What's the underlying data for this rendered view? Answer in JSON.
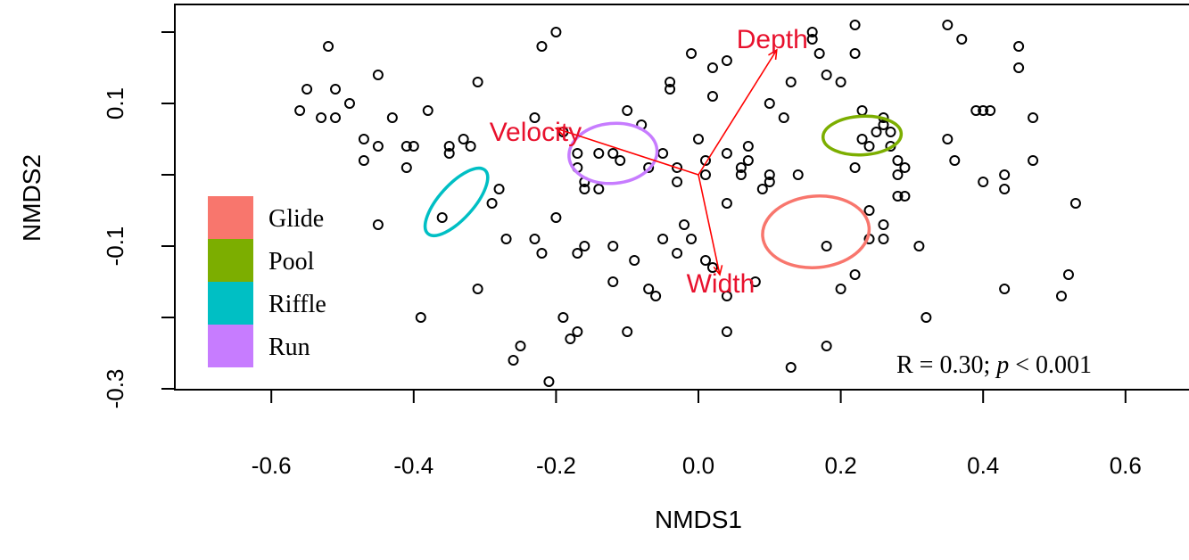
{
  "chart_data": {
    "type": "scatter",
    "xlabel": "NMDS1",
    "ylabel": "NMDS2",
    "xlim": [
      -0.7,
      0.7
    ],
    "ylim": [
      -0.32,
      0.2
    ],
    "x_ticks": [
      -0.6,
      -0.4,
      -0.2,
      0.0,
      0.2,
      0.4,
      0.6
    ],
    "x_tick_labels": [
      "-0.6",
      "-0.4",
      "-0.2",
      "0.0",
      "0.2",
      "0.4",
      "0.6"
    ],
    "y_ticks": [
      -0.3,
      -0.2,
      -0.1,
      0.0,
      0.1,
      0.2
    ],
    "y_tick_labels": [
      {
        "value": -0.3,
        "label": "-0.3"
      },
      {
        "value": -0.1,
        "label": "-0.1"
      },
      {
        "value": 0.1,
        "label": "0.1"
      }
    ],
    "grid": false,
    "point_color": "#000000",
    "points": [
      [
        -0.56,
        0.09
      ],
      [
        -0.55,
        0.12
      ],
      [
        -0.52,
        0.18
      ],
      [
        -0.51,
        0.12
      ],
      [
        -0.53,
        0.08
      ],
      [
        -0.51,
        0.08
      ],
      [
        -0.49,
        0.1
      ],
      [
        -0.45,
        0.14
      ],
      [
        -0.47,
        0.05
      ],
      [
        -0.47,
        0.02
      ],
      [
        -0.45,
        0.04
      ],
      [
        -0.43,
        0.08
      ],
      [
        -0.41,
        0.04
      ],
      [
        -0.4,
        0.04
      ],
      [
        -0.41,
        0.01
      ],
      [
        -0.38,
        0.09
      ],
      [
        -0.35,
        0.04
      ],
      [
        -0.35,
        0.03
      ],
      [
        -0.33,
        0.05
      ],
      [
        -0.32,
        0.04
      ],
      [
        -0.31,
        0.13
      ],
      [
        -0.29,
        -0.04
      ],
      [
        -0.28,
        -0.02
      ],
      [
        -0.45,
        -0.07
      ],
      [
        -0.36,
        -0.06
      ],
      [
        -0.39,
        -0.2
      ],
      [
        -0.31,
        -0.16
      ],
      [
        -0.23,
        0.08
      ],
      [
        -0.22,
        0.18
      ],
      [
        -0.2,
        0.2
      ],
      [
        -0.2,
        -0.06
      ],
      [
        -0.19,
        0.06
      ],
      [
        -0.17,
        0.03
      ],
      [
        -0.17,
        0.01
      ],
      [
        -0.16,
        -0.01
      ],
      [
        -0.16,
        -0.02
      ],
      [
        -0.14,
        0.03
      ],
      [
        -0.14,
        -0.02
      ],
      [
        -0.12,
        0.03
      ],
      [
        -0.11,
        0.02
      ],
      [
        -0.1,
        0.09
      ],
      [
        -0.08,
        0.07
      ],
      [
        -0.07,
        0.01
      ],
      [
        -0.05,
        0.03
      ],
      [
        -0.04,
        0.13
      ],
      [
        -0.04,
        0.12
      ],
      [
        -0.03,
        0.01
      ],
      [
        -0.01,
        0.17
      ],
      [
        -0.0,
        0.05
      ],
      [
        0.01,
        0.02
      ],
      [
        0.01,
        0.0
      ],
      [
        0.02,
        0.15
      ],
      [
        0.02,
        0.11
      ],
      [
        0.04,
        0.16
      ],
      [
        0.04,
        0.03
      ],
      [
        0.06,
        0.01
      ],
      [
        0.06,
        -0.0
      ],
      [
        0.07,
        0.04
      ],
      [
        0.07,
        0.02
      ],
      [
        0.09,
        -0.02
      ],
      [
        0.1,
        0.1
      ],
      [
        0.1,
        -0.01
      ],
      [
        0.1,
        -0.0
      ],
      [
        0.12,
        0.08
      ],
      [
        0.13,
        0.13
      ],
      [
        0.14,
        -0.0
      ],
      [
        0.16,
        0.19
      ],
      [
        0.16,
        0.2
      ],
      [
        0.17,
        0.17
      ],
      [
        0.18,
        0.14
      ],
      [
        0.2,
        0.13
      ],
      [
        0.22,
        0.17
      ],
      [
        0.22,
        0.21
      ],
      [
        0.22,
        0.01
      ],
      [
        0.23,
        0.09
      ],
      [
        0.23,
        0.05
      ],
      [
        0.24,
        0.04
      ],
      [
        0.24,
        -0.05
      ],
      [
        0.24,
        -0.09
      ],
      [
        0.25,
        0.06
      ],
      [
        0.26,
        0.08
      ],
      [
        0.26,
        0.07
      ],
      [
        0.27,
        0.06
      ],
      [
        0.27,
        0.04
      ],
      [
        0.28,
        0.02
      ],
      [
        0.28,
        0.0
      ],
      [
        0.28,
        -0.03
      ],
      [
        0.29,
        -0.03
      ],
      [
        0.29,
        0.01
      ],
      [
        0.26,
        -0.07
      ],
      [
        0.26,
        -0.09
      ],
      [
        0.22,
        -0.14
      ],
      [
        0.2,
        -0.16
      ],
      [
        0.18,
        -0.1
      ],
      [
        0.18,
        -0.24
      ],
      [
        0.13,
        -0.27
      ],
      [
        0.31,
        -0.1
      ],
      [
        0.32,
        -0.2
      ],
      [
        0.35,
        0.21
      ],
      [
        0.35,
        0.05
      ],
      [
        0.36,
        0.02
      ],
      [
        0.37,
        0.19
      ],
      [
        0.39,
        0.09
      ],
      [
        0.4,
        0.09
      ],
      [
        0.4,
        -0.01
      ],
      [
        0.41,
        0.09
      ],
      [
        0.43,
        0.0
      ],
      [
        0.43,
        -0.02
      ],
      [
        0.43,
        -0.16
      ],
      [
        0.45,
        0.15
      ],
      [
        0.45,
        0.18
      ],
      [
        0.47,
        0.08
      ],
      [
        0.47,
        0.02
      ],
      [
        0.51,
        -0.17
      ],
      [
        0.52,
        -0.14
      ],
      [
        0.53,
        -0.04
      ],
      [
        -0.27,
        -0.09
      ],
      [
        -0.23,
        -0.09
      ],
      [
        -0.22,
        -0.11
      ],
      [
        -0.17,
        -0.11
      ],
      [
        -0.16,
        -0.1
      ],
      [
        -0.12,
        -0.1
      ],
      [
        -0.12,
        -0.15
      ],
      [
        -0.09,
        -0.12
      ],
      [
        -0.07,
        -0.16
      ],
      [
        -0.06,
        -0.17
      ],
      [
        -0.05,
        -0.09
      ],
      [
        -0.03,
        -0.11
      ],
      [
        -0.02,
        -0.07
      ],
      [
        -0.01,
        -0.09
      ],
      [
        0.01,
        -0.12
      ],
      [
        0.02,
        -0.13
      ],
      [
        0.04,
        -0.17
      ],
      [
        0.04,
        -0.22
      ],
      [
        0.08,
        -0.15
      ],
      [
        -0.19,
        -0.2
      ],
      [
        -0.18,
        -0.23
      ],
      [
        -0.17,
        -0.22
      ],
      [
        -0.1,
        -0.22
      ],
      [
        -0.26,
        -0.26
      ],
      [
        -0.25,
        -0.24
      ],
      [
        -0.21,
        -0.29
      ],
      [
        0.04,
        -0.04
      ],
      [
        -0.03,
        -0.01
      ]
    ],
    "series": [
      {
        "name": "Glide",
        "color": "#F8766D",
        "ellipse": {
          "cx": 0.165,
          "cy": -0.08,
          "rx": 0.075,
          "ry": 0.05,
          "angle": -5
        }
      },
      {
        "name": "Pool",
        "color": "#7CAE00",
        "ellipse": {
          "cx": 0.23,
          "cy": 0.055,
          "rx": 0.055,
          "ry": 0.027,
          "angle": -3
        }
      },
      {
        "name": "Riffle",
        "color": "#00BFC4",
        "ellipse": {
          "cx": -0.34,
          "cy": -0.038,
          "rx": 0.06,
          "ry": 0.024,
          "angle": -48
        }
      },
      {
        "name": "Run",
        "color": "#C77CFF",
        "ellipse": {
          "cx": -0.12,
          "cy": 0.03,
          "rx": 0.062,
          "ry": 0.042,
          "angle": -5
        }
      }
    ],
    "vectors": {
      "origin": [
        0.0,
        0.0
      ],
      "color": "#FF0000",
      "label_color": "#E8112D",
      "items": [
        {
          "name": "Depth",
          "x": 0.11,
          "y": 0.175
        },
        {
          "name": "Velocity",
          "x": -0.2,
          "y": 0.065
        },
        {
          "name": "Width",
          "x": 0.03,
          "y": -0.14
        }
      ]
    },
    "annotation": {
      "prefix": "R = 0.30; ",
      "italic": "p",
      "suffix": " < 0.001"
    }
  }
}
